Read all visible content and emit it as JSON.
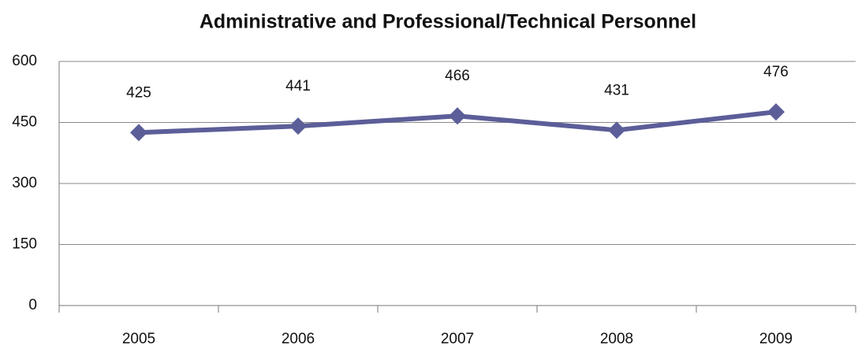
{
  "chart_data": {
    "type": "line",
    "title": "Administrative and Professional/Technical Personnel",
    "categories": [
      "2005",
      "2006",
      "2007",
      "2008",
      "2009"
    ],
    "values": [
      425,
      441,
      466,
      431,
      476
    ],
    "color": "#5b5e98",
    "ylim": [
      0,
      600
    ],
    "yticks": [
      0,
      150,
      300,
      450,
      600
    ],
    "grid": true,
    "markers": "diamond"
  }
}
